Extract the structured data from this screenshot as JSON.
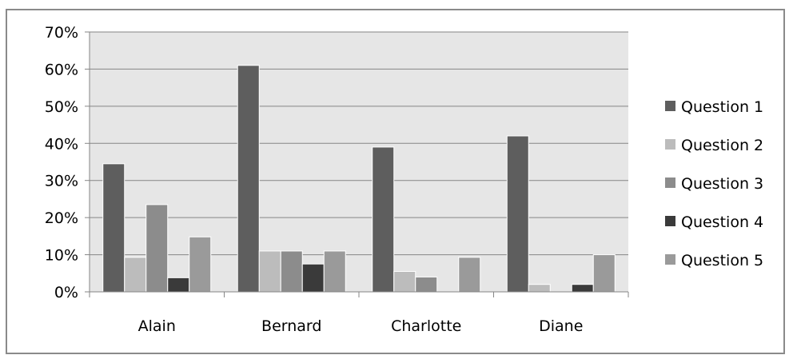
{
  "chart_data": {
    "type": "bar",
    "categories": [
      "Alain",
      "Bernard",
      "Charlotte",
      "Diane"
    ],
    "series": [
      {
        "name": "Question 1",
        "values": [
          34.5,
          61,
          39,
          42
        ],
        "color": "#5e5e5e"
      },
      {
        "name": "Question 2",
        "values": [
          9.3,
          11,
          5.5,
          2
        ],
        "color": "#bcbcbc"
      },
      {
        "name": "Question 3",
        "values": [
          23.5,
          11,
          4,
          0
        ],
        "color": "#8c8c8c"
      },
      {
        "name": "Question 4",
        "values": [
          3.8,
          7.5,
          0,
          2
        ],
        "color": "#3a3a3a"
      },
      {
        "name": "Question 5",
        "values": [
          14.8,
          11,
          9.3,
          10
        ],
        "color": "#9a9a9a"
      }
    ],
    "yticks": [
      "0%",
      "10%",
      "20%",
      "30%",
      "40%",
      "50%",
      "60%",
      "70%"
    ],
    "ylim": [
      0,
      70
    ],
    "grid": true,
    "legend_position": "right",
    "colors": {
      "plot_background": "#e6e6e6",
      "frame": "#868686",
      "gridline": "#868686"
    }
  }
}
